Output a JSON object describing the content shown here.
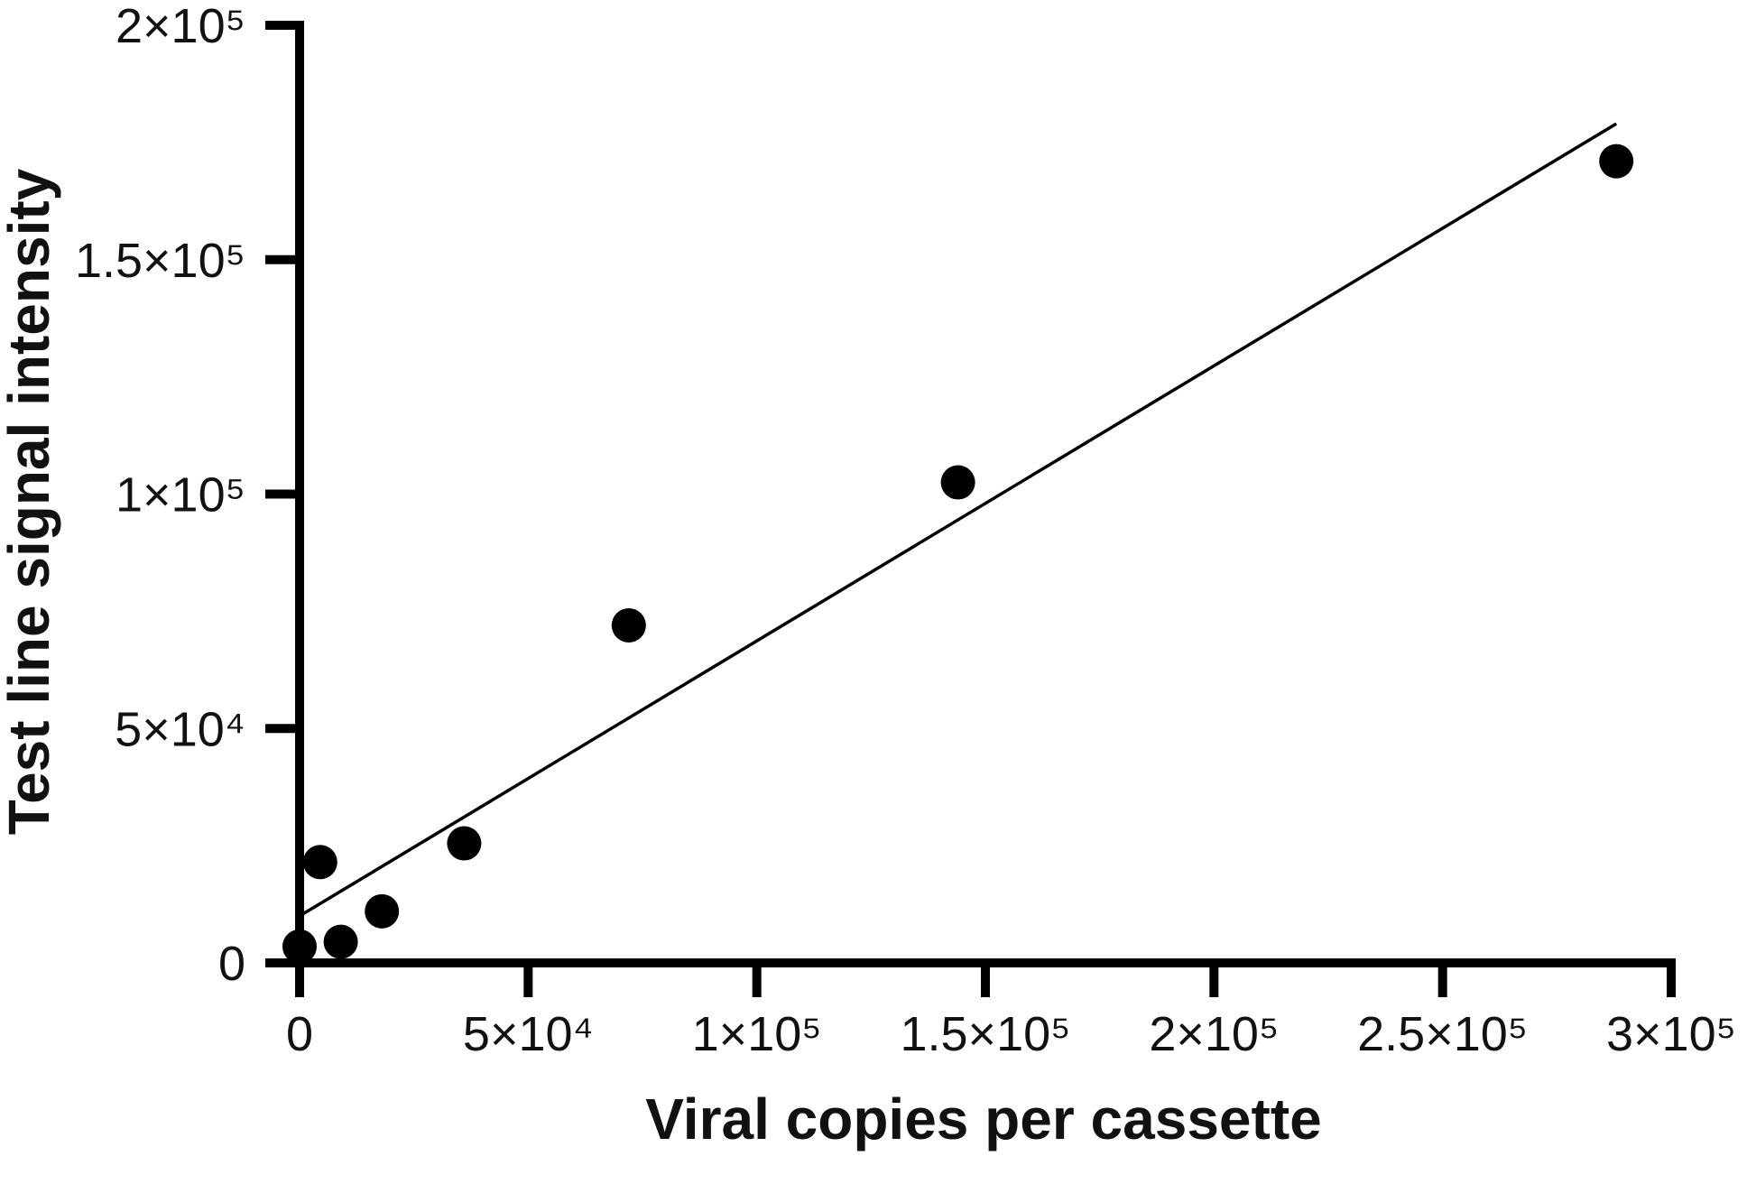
{
  "chart_data": {
    "type": "scatter",
    "title": "",
    "xlabel": "Viral copies per cassette",
    "ylabel": "Test line signal intensity",
    "xlim": [
      0,
      300000
    ],
    "ylim": [
      0,
      200000
    ],
    "x_ticks": [
      {
        "value": 0,
        "label": "0"
      },
      {
        "value": 50000,
        "label": "5×10⁴"
      },
      {
        "value": 100000,
        "label": "1×10⁵"
      },
      {
        "value": 150000,
        "label": "1.5×10⁵"
      },
      {
        "value": 200000,
        "label": "2×10⁵"
      },
      {
        "value": 250000,
        "label": "2.5×10⁵"
      },
      {
        "value": 300000,
        "label": "3×10⁵"
      }
    ],
    "y_ticks": [
      {
        "value": 0,
        "label": "0"
      },
      {
        "value": 50000,
        "label": "5×10⁴"
      },
      {
        "value": 100000,
        "label": "1×10⁵"
      },
      {
        "value": 150000,
        "label": "1.5×10⁵"
      },
      {
        "value": 200000,
        "label": "2×10⁵"
      }
    ],
    "grid": false,
    "points": [
      {
        "x": 0,
        "y": 3500
      },
      {
        "x": 4500,
        "y": 21500
      },
      {
        "x": 9000,
        "y": 4500
      },
      {
        "x": 18000,
        "y": 11000
      },
      {
        "x": 36000,
        "y": 25500
      },
      {
        "x": 72000,
        "y": 72000
      },
      {
        "x": 144000,
        "y": 102500
      },
      {
        "x": 288000,
        "y": 171000
      }
    ],
    "fit_line": {
      "x": [
        0,
        288000
      ],
      "y": [
        10000,
        179000
      ]
    },
    "colors": {
      "marker": "#000000",
      "axis": "#000000",
      "fit_line": "#000000"
    }
  }
}
